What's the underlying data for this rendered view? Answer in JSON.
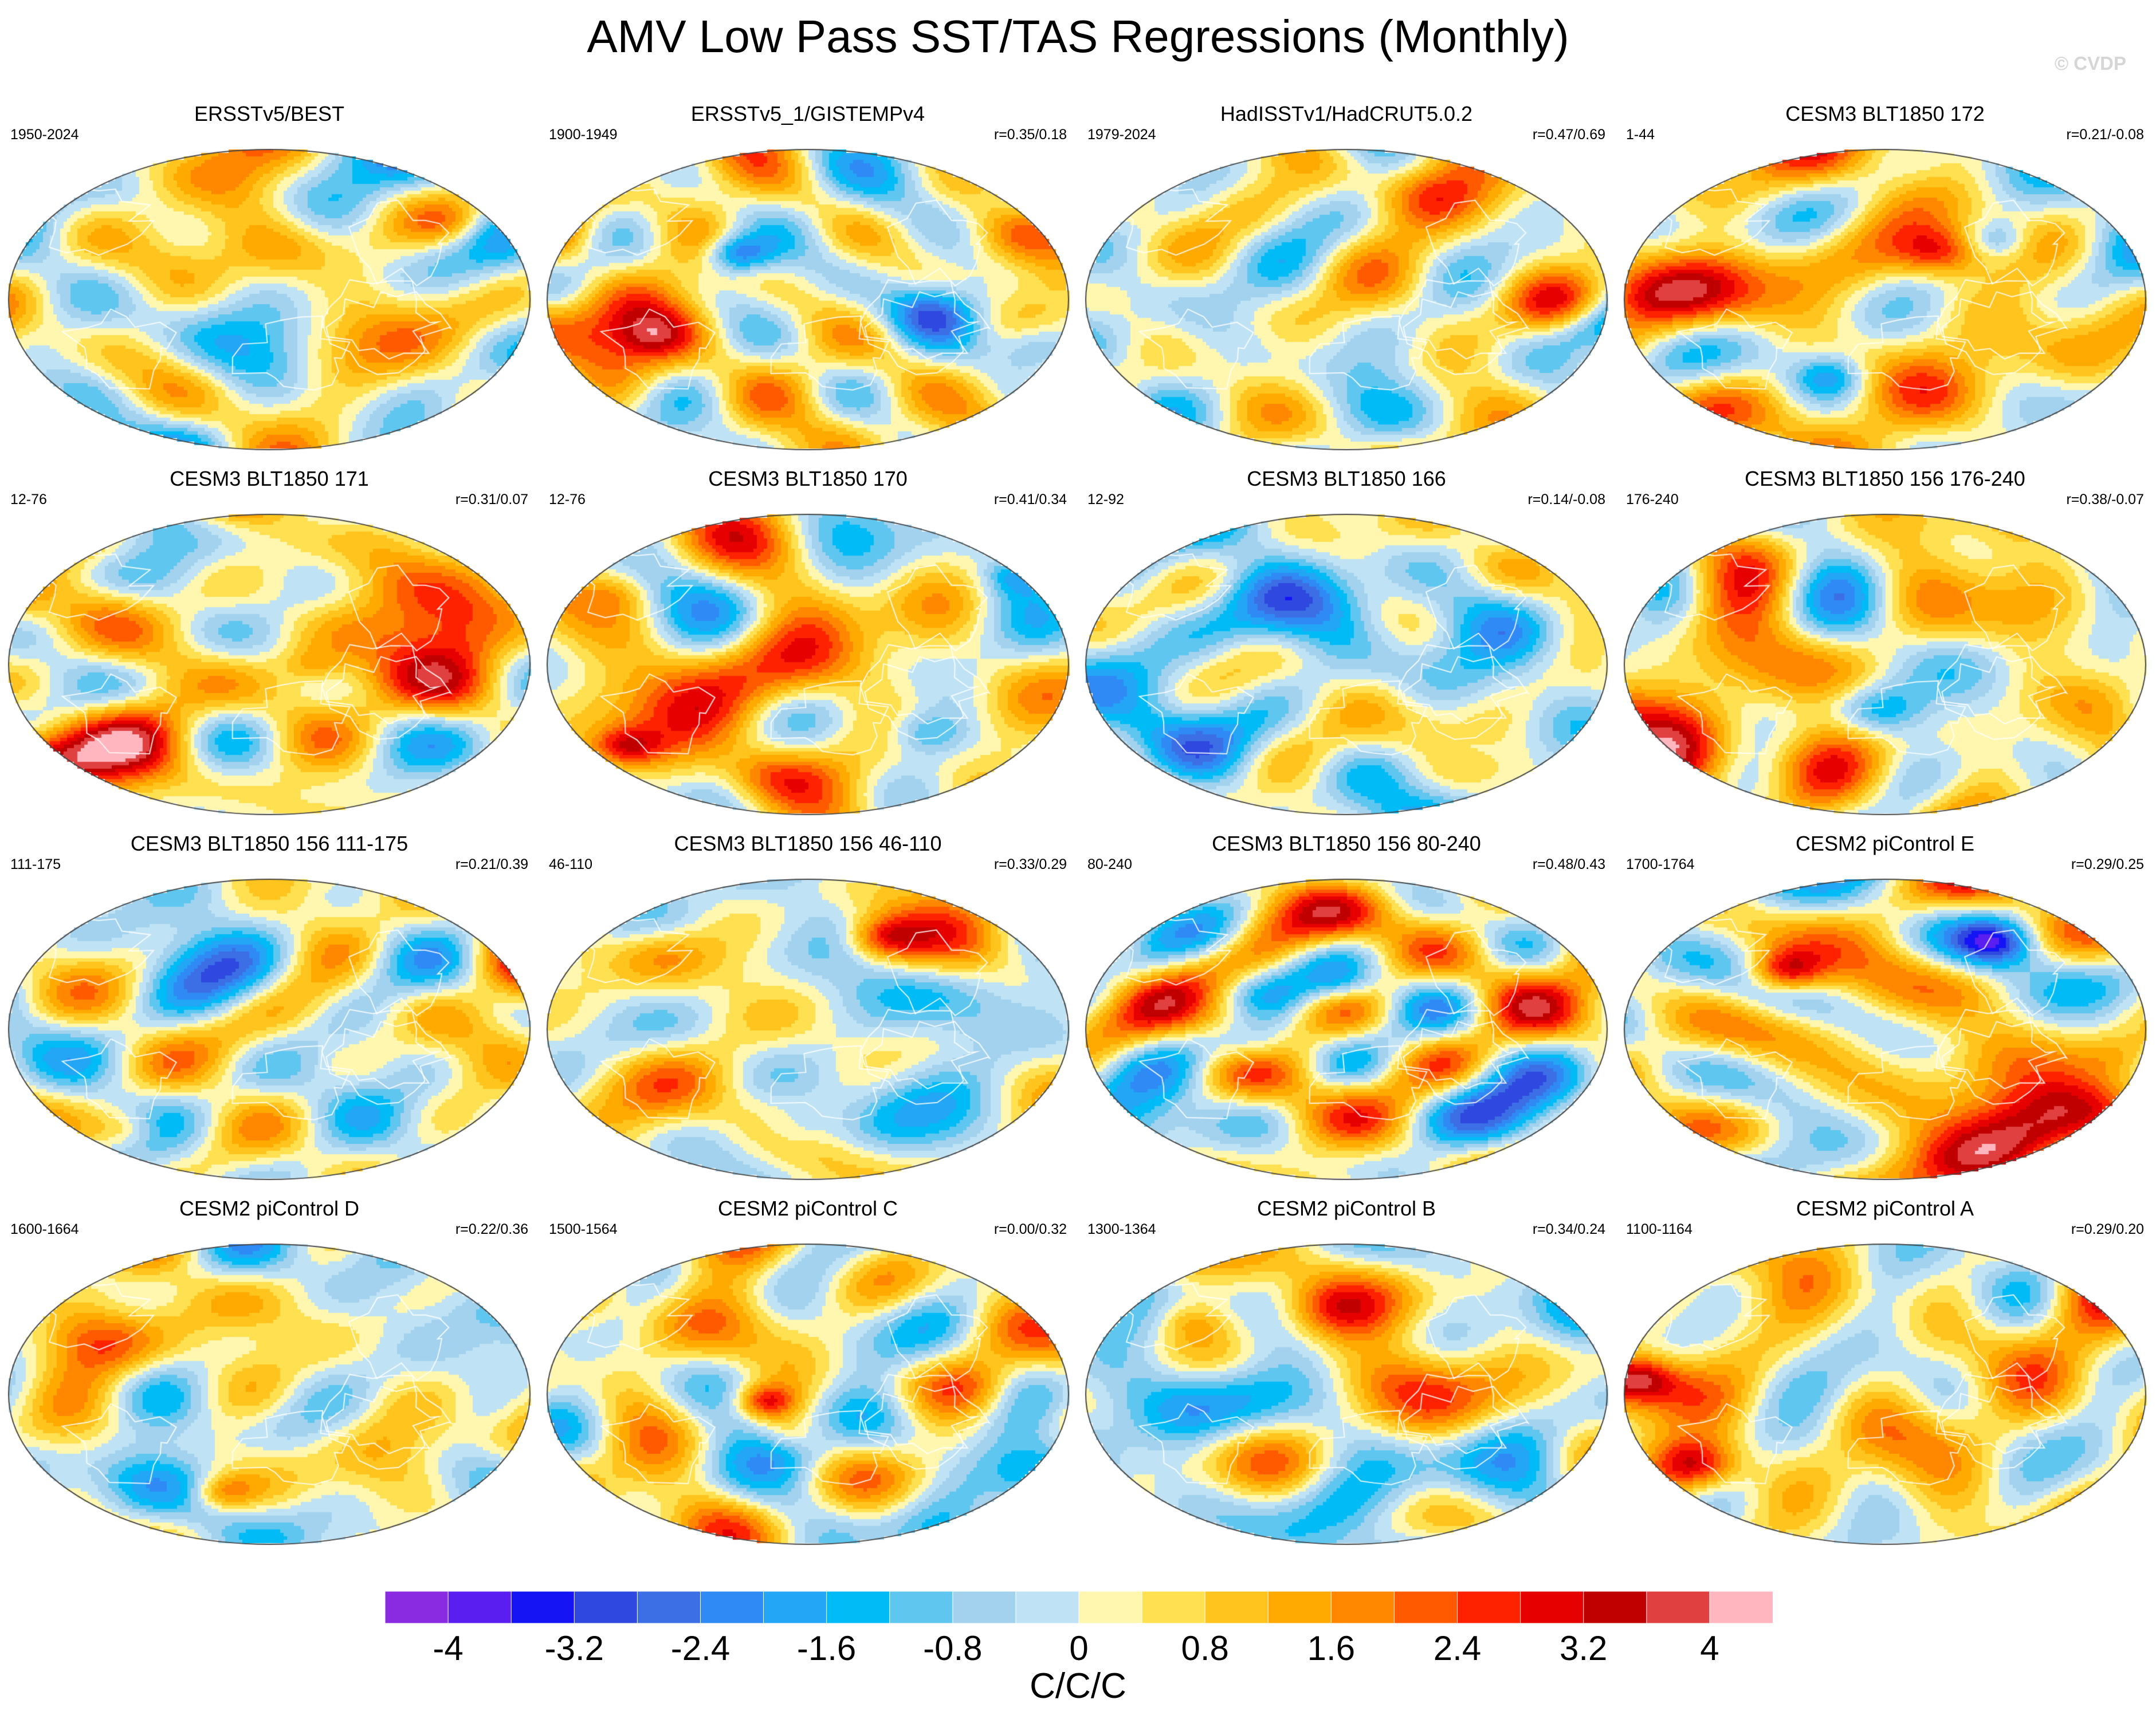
{
  "title": "AMV Low Pass SST/TAS Regressions (Monthly)",
  "watermark": "© CVDP",
  "colorbar": {
    "units": "C/C/C",
    "labels": [
      "-4",
      "-3.2",
      "-2.4",
      "-1.6",
      "-0.8",
      "0",
      "0.8",
      "1.6",
      "2.4",
      "3.2",
      "4"
    ],
    "colors": [
      "#8a2be2",
      "#5b1ef0",
      "#1414f5",
      "#2e48e0",
      "#3c6ee6",
      "#2f8af5",
      "#22a6f5",
      "#00bbf5",
      "#5ec6ef",
      "#a2d2ee",
      "#bfe3f5",
      "#fff7b0",
      "#ffe050",
      "#ffc41e",
      "#ffaa00",
      "#ff8800",
      "#ff5a00",
      "#ff2200",
      "#e60000",
      "#c00000",
      "#e04040",
      "#ffb6be"
    ]
  },
  "chart_data": {
    "type": "heatmap",
    "title": "AMV Low Pass SST/TAS Regressions (Monthly)",
    "colorbar_label": "C/C/C",
    "colorbar_ticks": [
      -4,
      -3.2,
      -2.4,
      -1.6,
      -0.8,
      0,
      0.8,
      1.6,
      2.4,
      3.2,
      4
    ],
    "panels": [
      {
        "title": "ERSSTv5/BEST",
        "years": "1950-2024",
        "r": "",
        "seed": 11,
        "bias": 0.15
      },
      {
        "title": "ERSSTv5_1/GISTEMPv4",
        "years": "1900-1949",
        "r": "r=0.35/0.18",
        "seed": 23,
        "bias": 0.25
      },
      {
        "title": "HadISSTv1/HadCRUT5.0.2",
        "years": "1979-2024",
        "r": "r=0.47/0.69",
        "seed": 37,
        "bias": 0.1
      },
      {
        "title": "CESM3 BLT1850 172",
        "years": "1-44",
        "r": "r=0.21/-0.08",
        "seed": 41,
        "bias": 0.45
      },
      {
        "title": "CESM3 BLT1850 171",
        "years": "12-76",
        "r": "r=0.31/0.07",
        "seed": 53,
        "bias": 0.35
      },
      {
        "title": "CESM3 BLT1850 170",
        "years": "12-76",
        "r": "r=0.41/0.34",
        "seed": 67,
        "bias": 0.3
      },
      {
        "title": "CESM3 BLT1850 166",
        "years": "12-92",
        "r": "r=0.14/-0.08",
        "seed": 71,
        "bias": -0.2
      },
      {
        "title": "CESM3 BLT1850 156 176-240",
        "years": "176-240",
        "r": "r=0.38/-0.07",
        "seed": 83,
        "bias": 0.55
      },
      {
        "title": "CESM3 BLT1850 156 111-175",
        "years": "111-175",
        "r": "r=0.21/0.39",
        "seed": 97,
        "bias": 0.1
      },
      {
        "title": "CESM3 BLT1850 156 46-110",
        "years": "46-110",
        "r": "r=0.33/0.29",
        "seed": 101,
        "bias": 0.2
      },
      {
        "title": "CESM3 BLT1850 156 80-240",
        "years": "80-240",
        "r": "r=0.48/0.43",
        "seed": 113,
        "bias": 0.55
      },
      {
        "title": "CESM2 piControl E",
        "years": "1700-1764",
        "r": "r=0.29/0.25",
        "seed": 127,
        "bias": 0.4
      },
      {
        "title": "CESM2 piControl D",
        "years": "1600-1664",
        "r": "r=0.22/0.36",
        "seed": 131,
        "bias": 0.2
      },
      {
        "title": "CESM2 piControl C",
        "years": "1500-1564",
        "r": "r=0.00/0.32",
        "seed": 149,
        "bias": 0.45
      },
      {
        "title": "CESM2 piControl B",
        "years": "1300-1364",
        "r": "r=0.34/0.24",
        "seed": 157,
        "bias": -0.05
      },
      {
        "title": "CESM2 piControl A",
        "years": "1100-1164",
        "r": "r=0.29/0.20",
        "seed": 163,
        "bias": 0.35
      }
    ]
  }
}
